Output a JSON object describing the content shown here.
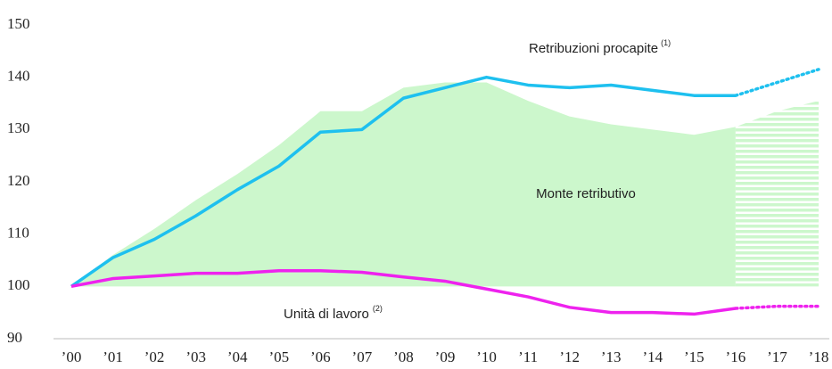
{
  "chart_data": {
    "type": "line_area",
    "categories": [
      "’00",
      "’01",
      "’02",
      "’03",
      "’04",
      "’05",
      "’06",
      "’07",
      "’08",
      "’09",
      "’10",
      "’11",
      "’12",
      "’13",
      "’14",
      "’15",
      "’16",
      "’17",
      "’18"
    ],
    "ylim": [
      90,
      150
    ],
    "yticks": [
      90,
      100,
      110,
      120,
      130,
      140,
      150
    ],
    "projection_start": "’16",
    "series": [
      {
        "name": "Monte retributivo",
        "kind": "area",
        "color": "#ccf7cc",
        "values": [
          100,
          106,
          111,
          116.5,
          121.5,
          127,
          133.5,
          133.5,
          138,
          139,
          139,
          135.5,
          132.5,
          131,
          130,
          129,
          130.5,
          133.5,
          135.5
        ]
      },
      {
        "name": "Retribuzioni procapite",
        "note": "(1)",
        "kind": "line",
        "color": "#1ec0ef",
        "values": [
          100,
          105.5,
          109,
          113.5,
          118.5,
          123,
          129.5,
          130,
          136,
          138,
          140,
          138.5,
          138,
          138.5,
          137.5,
          136.5,
          136.5,
          139,
          141.5
        ]
      },
      {
        "name": "Unità di lavoro",
        "note": "(2)",
        "kind": "line",
        "color": "#ee22ee",
        "values": [
          100,
          101.5,
          102,
          102.5,
          102.5,
          103,
          103,
          102.7,
          101.8,
          101,
          99.5,
          98,
          96,
          95,
          95,
          94.7,
          95.8,
          96.2,
          96.2
        ]
      }
    ]
  }
}
